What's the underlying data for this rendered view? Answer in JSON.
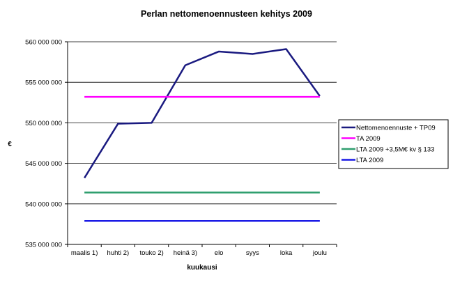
{
  "chart_data": {
    "type": "line",
    "title": "Perlan nettomenoennusteen kehitys 2009",
    "xlabel": "kuukausi",
    "ylabel": "€",
    "categories": [
      "maalis 1)",
      "huhti 2)",
      "touko 2)",
      "heinä 3)",
      "elo",
      "syys",
      "loka",
      "joulu"
    ],
    "ylim": [
      535000000,
      560000000
    ],
    "yticks": [
      535000000,
      540000000,
      545000000,
      550000000,
      555000000,
      560000000
    ],
    "ytick_labels": [
      "535 000 000",
      "540 000 000",
      "545 000 000",
      "550 000 000",
      "555 000 000",
      "560 000 000"
    ],
    "grid": true,
    "legend_position": "right",
    "series": [
      {
        "name": "Nettomenoennuste + TP09",
        "color": "#1a1a80",
        "values": [
          543200000,
          549900000,
          550000000,
          557100000,
          558800000,
          558500000,
          559100000,
          553300000
        ]
      },
      {
        "name": "TA 2009",
        "color": "#ff00ff",
        "values": [
          553200000,
          553200000,
          553200000,
          553200000,
          553200000,
          553200000,
          553200000,
          553200000
        ]
      },
      {
        "name": "LTA 2009 +3,5M€ kv § 133",
        "color": "#2e9e6e",
        "values": [
          541400000,
          541400000,
          541400000,
          541400000,
          541400000,
          541400000,
          541400000,
          541400000
        ]
      },
      {
        "name": "LTA 2009",
        "color": "#1a1ae6",
        "values": [
          537900000,
          537900000,
          537900000,
          537900000,
          537900000,
          537900000,
          537900000,
          537900000
        ]
      }
    ]
  }
}
